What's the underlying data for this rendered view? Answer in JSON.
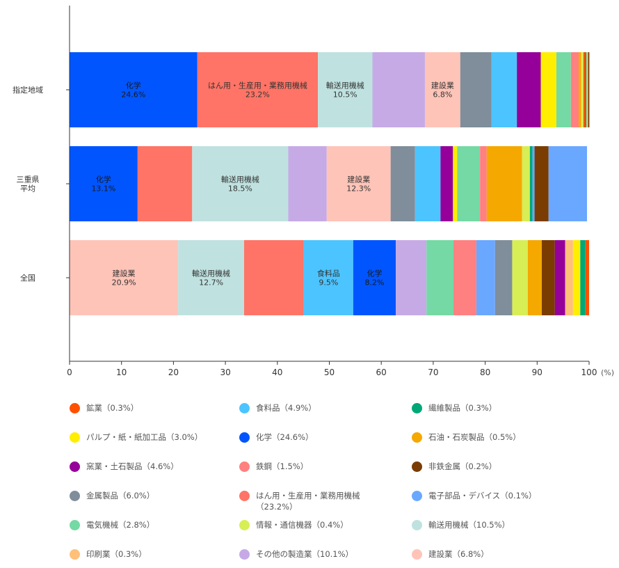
{
  "chart_data": {
    "type": "bar",
    "orientation": "horizontal",
    "stacked": true,
    "unit": "(%)",
    "xlim": [
      0,
      100
    ],
    "xticks": [
      0,
      10,
      20,
      30,
      40,
      50,
      60,
      70,
      80,
      90,
      100
    ],
    "categories": [
      "指定地域",
      "三重県\n平均",
      "全国"
    ],
    "segments": [
      [
        {
          "name": "化学",
          "value": 24.6,
          "color": "#0055ff",
          "label": "化学\n24.6%"
        },
        {
          "name": "はん用・生産用・業務用機械",
          "value": 23.2,
          "color": "#ff7466",
          "label": "はん用・生産用・業務用機械\n23.2%"
        },
        {
          "name": "輸送用機械",
          "value": 10.5,
          "color": "#bfe2e0",
          "label": "輸送用機械\n10.5%"
        },
        {
          "name": "その他の製造業",
          "value": 10.1,
          "color": "#c6aae6",
          "label": ""
        },
        {
          "name": "建設業",
          "value": 6.8,
          "color": "#ffc4b8",
          "label": "建設業\n6.8%"
        },
        {
          "name": "金属製品",
          "value": 6.0,
          "color": "#7f8e9a",
          "label": ""
        },
        {
          "name": "食料品",
          "value": 4.9,
          "color": "#4cc4ff",
          "label": ""
        },
        {
          "name": "窯業・土石製品",
          "value": 4.6,
          "color": "#96009a",
          "label": ""
        },
        {
          "name": "パルプ・紙・紙加工品",
          "value": 3.0,
          "color": "#ffee00",
          "label": ""
        },
        {
          "name": "電気機械",
          "value": 2.8,
          "color": "#74d9a4",
          "label": ""
        },
        {
          "name": "鉄鋼",
          "value": 1.5,
          "color": "#ff8080",
          "label": ""
        },
        {
          "name": "石油・石炭製品",
          "value": 0.5,
          "color": "#f5a800",
          "label": ""
        },
        {
          "name": "情報・通信機器",
          "value": 0.4,
          "color": "#d8ee55",
          "label": ""
        },
        {
          "name": "鉱業",
          "value": 0.3,
          "color": "#ff5000",
          "label": ""
        },
        {
          "name": "繊維製品",
          "value": 0.3,
          "color": "#00a878",
          "label": ""
        },
        {
          "name": "印刷業",
          "value": 0.3,
          "color": "#ffc07a",
          "label": ""
        },
        {
          "name": "非鉄金属",
          "value": 0.2,
          "color": "#7a3c00",
          "label": ""
        },
        {
          "name": "電子部品・デバイス",
          "value": 0.1,
          "color": "#6aa8ff",
          "label": ""
        }
      ],
      [
        {
          "name": "化学",
          "value": 13.1,
          "color": "#0055ff",
          "label": "化学\n13.1%"
        },
        {
          "name": "はん用・生産用・業務用機械",
          "value": 10.5,
          "color": "#ff7466",
          "label": ""
        },
        {
          "name": "輸送用機械",
          "value": 18.5,
          "color": "#bfe2e0",
          "label": "輸送用機械\n18.5%"
        },
        {
          "name": "その他の製造業",
          "value": 7.4,
          "color": "#c6aae6",
          "label": ""
        },
        {
          "name": "建設業",
          "value": 12.3,
          "color": "#ffc4b8",
          "label": "建設業\n12.3%"
        },
        {
          "name": "金属製品",
          "value": 4.7,
          "color": "#7f8e9a",
          "label": ""
        },
        {
          "name": "食料品",
          "value": 4.9,
          "color": "#4cc4ff",
          "label": ""
        },
        {
          "name": "窯業・土石製品",
          "value": 2.4,
          "color": "#96009a",
          "label": ""
        },
        {
          "name": "パルプ・紙・紙加工品",
          "value": 0.8,
          "color": "#ffee00",
          "label": ""
        },
        {
          "name": "電気機械",
          "value": 4.4,
          "color": "#74d9a4",
          "label": ""
        },
        {
          "name": "鉄鋼",
          "value": 1.3,
          "color": "#ff8080",
          "label": ""
        },
        {
          "name": "石油・石炭製品",
          "value": 6.8,
          "color": "#f5a800",
          "label": ""
        },
        {
          "name": "情報・通信機器",
          "value": 1.5,
          "color": "#d8ee55",
          "label": ""
        },
        {
          "name": "繊維製品",
          "value": 0.5,
          "color": "#00a878",
          "label": ""
        },
        {
          "name": "電子部品・デバイス",
          "value": 0.4,
          "color": "#6aa8ff",
          "label": ""
        },
        {
          "name": "非鉄金属",
          "value": 2.7,
          "color": "#7a3c00",
          "label": ""
        },
        {
          "name": "電子部品・デバイス",
          "value": 7.4,
          "color": "#6aa8ff",
          "label": ""
        }
      ],
      [
        {
          "name": "建設業",
          "value": 20.9,
          "color": "#ffc4b8",
          "label": "建設業\n20.9%"
        },
        {
          "name": "輸送用機械",
          "value": 12.7,
          "color": "#bfe2e0",
          "label": "輸送用機械\n12.7%"
        },
        {
          "name": "はん用・生産用・業務用機械",
          "value": 11.5,
          "color": "#ff7466",
          "label": ""
        },
        {
          "name": "食料品",
          "value": 9.5,
          "color": "#4cc4ff",
          "label": "食料品\n9.5%"
        },
        {
          "name": "化学",
          "value": 8.2,
          "color": "#0055ff",
          "label": "化学\n8.2%"
        },
        {
          "name": "その他の製造業",
          "value": 5.9,
          "color": "#c6aae6",
          "label": ""
        },
        {
          "name": "電気機械",
          "value": 5.2,
          "color": "#74d9a4",
          "label": ""
        },
        {
          "name": "鉄鋼",
          "value": 4.4,
          "color": "#ff8080",
          "label": ""
        },
        {
          "name": "電子部品・デバイス",
          "value": 3.6,
          "color": "#6aa8ff",
          "label": ""
        },
        {
          "name": "金属製品",
          "value": 3.3,
          "color": "#7f8e9a",
          "label": ""
        },
        {
          "name": "情報・通信機器",
          "value": 3.0,
          "color": "#d8ee55",
          "label": ""
        },
        {
          "name": "石油・石炭製品",
          "value": 2.7,
          "color": "#f5a800",
          "label": ""
        },
        {
          "name": "非鉄金属",
          "value": 2.5,
          "color": "#7a3c00",
          "label": ""
        },
        {
          "name": "窯業・土石製品",
          "value": 2.0,
          "color": "#96009a",
          "label": ""
        },
        {
          "name": "印刷業",
          "value": 1.5,
          "color": "#ffc07a",
          "label": ""
        },
        {
          "name": "パルプ・紙・紙加工品",
          "value": 1.4,
          "color": "#ffee00",
          "label": ""
        },
        {
          "name": "繊維製品",
          "value": 1.0,
          "color": "#00a878",
          "label": ""
        },
        {
          "name": "鉱業",
          "value": 0.7,
          "color": "#ff5000",
          "label": ""
        }
      ]
    ],
    "legend": [
      {
        "label": "鉱業（0.3%）",
        "color": "#ff5000"
      },
      {
        "label": "食料品（4.9%）",
        "color": "#4cc4ff"
      },
      {
        "label": "繊維製品（0.3%）",
        "color": "#00a878"
      },
      {
        "label": "パルプ・紙・紙加工品（3.0%）",
        "color": "#ffee00"
      },
      {
        "label": "化学（24.6%）",
        "color": "#0055ff"
      },
      {
        "label": "石油・石炭製品（0.5%）",
        "color": "#f5a800"
      },
      {
        "label": "窯業・土石製品（4.6%）",
        "color": "#96009a"
      },
      {
        "label": "鉄鋼（1.5%）",
        "color": "#ff8080"
      },
      {
        "label": "非鉄金属（0.2%）",
        "color": "#7a3c00"
      },
      {
        "label": "金属製品（6.0%）",
        "color": "#7f8e9a"
      },
      {
        "label": "はん用・生産用・業務用機械\n（23.2%）",
        "color": "#ff7466"
      },
      {
        "label": "電子部品・デバイス（0.1%）",
        "color": "#6aa8ff"
      },
      {
        "label": "電気機械（2.8%）",
        "color": "#74d9a4"
      },
      {
        "label": "情報・通信機器（0.4%）",
        "color": "#d8ee55"
      },
      {
        "label": "輸送用機械（10.5%）",
        "color": "#bfe2e0"
      },
      {
        "label": "印刷業（0.3%）",
        "color": "#ffc07a"
      },
      {
        "label": "その他の製造業（10.1%）",
        "color": "#c6aae6"
      },
      {
        "label": "建設業（6.8%）",
        "color": "#ffc4b8"
      }
    ]
  }
}
